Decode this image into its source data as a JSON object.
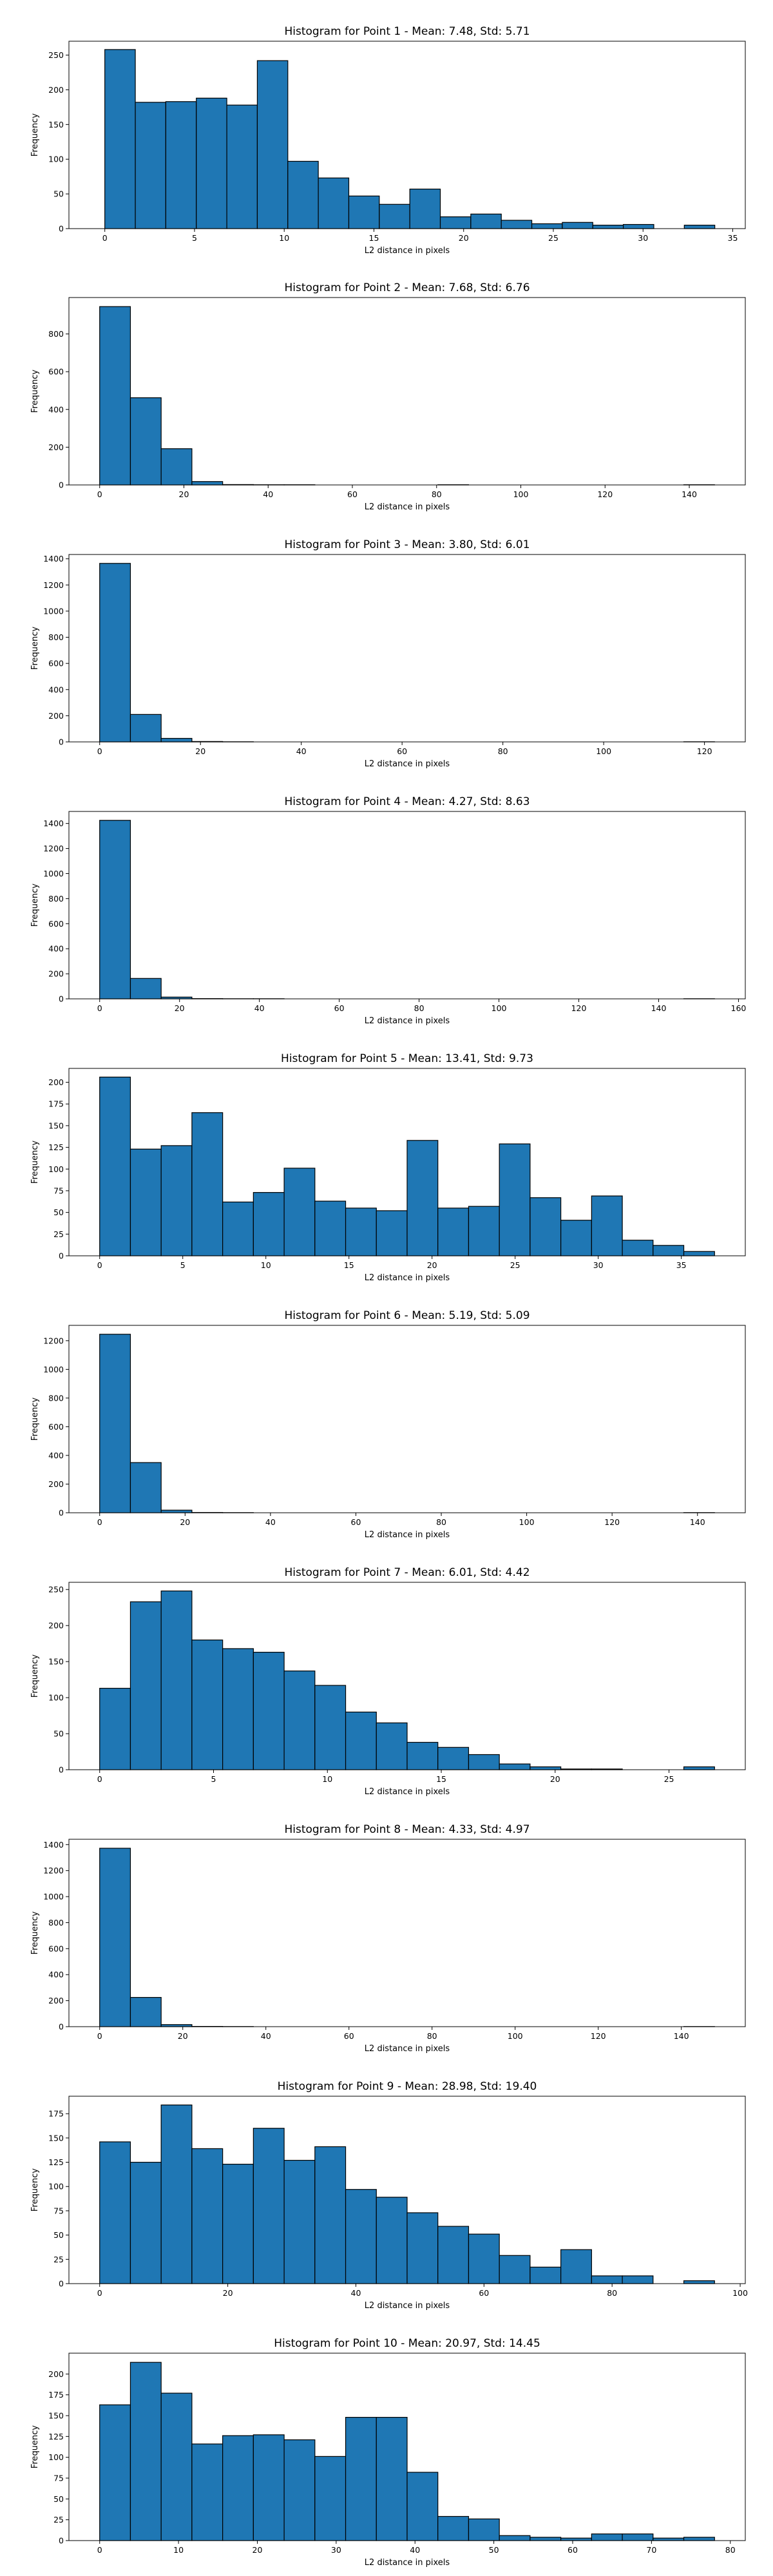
{
  "chart_data": [
    {
      "type": "bar",
      "title": "Histogram for Point 1 - Mean: 7.48, Std: 5.71",
      "xlabel": "L2 distance in pixels",
      "ylabel": "Frequency",
      "bin_edges": [
        0,
        1.7,
        3.4,
        5.1,
        6.8,
        8.5,
        10.2,
        11.9,
        13.6,
        15.3,
        17.0,
        18.7,
        20.4,
        22.1,
        23.8,
        25.5,
        27.2,
        28.9,
        30.6,
        32.3,
        34.0
      ],
      "values": [
        258,
        182,
        183,
        188,
        178,
        242,
        97,
        73,
        47,
        35,
        57,
        17,
        21,
        12,
        7,
        9,
        5,
        6,
        0,
        5
      ],
      "xlim": [
        -2,
        35.7
      ],
      "ylim": [
        0,
        270
      ],
      "xticks": [
        0,
        5,
        10,
        15,
        20,
        25,
        30,
        35
      ],
      "yticks": [
        0,
        50,
        100,
        150,
        200,
        250
      ]
    },
    {
      "type": "bar",
      "title": "Histogram for Point 2 - Mean: 7.68, Std: 6.76",
      "xlabel": "L2 distance in pixels",
      "ylabel": "Frequency",
      "bin_edges": [
        0,
        7.3,
        14.6,
        21.9,
        29.2,
        36.5,
        43.8,
        51.1,
        58.4,
        65.7,
        73.0,
        80.3,
        87.6,
        94.9,
        102.2,
        109.5,
        116.8,
        124.1,
        131.4,
        138.7,
        146.0
      ],
      "values": [
        945,
        462,
        192,
        18,
        2,
        1,
        1,
        0,
        0,
        0,
        0,
        1,
        0,
        0,
        0,
        0,
        0,
        0,
        0,
        1
      ],
      "xlim": [
        -7.3,
        153.3
      ],
      "ylim": [
        0,
        993
      ],
      "xticks": [
        0,
        20,
        40,
        60,
        80,
        100,
        120,
        140
      ],
      "yticks": [
        0,
        200,
        400,
        600,
        800
      ]
    },
    {
      "type": "bar",
      "title": "Histogram for Point 3 - Mean: 3.80, Std: 6.01",
      "xlabel": "L2 distance in pixels",
      "ylabel": "Frequency",
      "bin_edges": [
        0,
        6.1,
        12.2,
        18.3,
        24.4,
        30.5,
        36.6,
        42.7,
        48.8,
        54.9,
        61.0,
        67.1,
        73.2,
        79.3,
        85.4,
        91.5,
        97.6,
        103.7,
        109.8,
        115.9,
        122.0
      ],
      "values": [
        1365,
        210,
        27,
        3,
        1,
        0,
        0,
        0,
        0,
        0,
        0,
        0,
        0,
        0,
        0,
        0,
        0,
        0,
        0,
        1
      ],
      "xlim": [
        -6.1,
        128.1
      ],
      "ylim": [
        0,
        1433
      ],
      "xticks": [
        0,
        20,
        40,
        60,
        80,
        100,
        120
      ],
      "yticks": [
        0,
        200,
        400,
        600,
        800,
        1000,
        1200,
        1400
      ]
    },
    {
      "type": "bar",
      "title": "Histogram for Point 4 - Mean: 4.27, Std: 8.63",
      "xlabel": "L2 distance in pixels",
      "ylabel": "Frequency",
      "bin_edges": [
        0,
        7.7,
        15.4,
        23.1,
        30.8,
        38.5,
        46.2,
        53.9,
        61.6,
        69.3,
        77.0,
        84.7,
        92.4,
        100.1,
        107.8,
        115.5,
        123.2,
        130.9,
        138.6,
        146.3,
        154.0
      ],
      "values": [
        1425,
        163,
        14,
        2,
        1,
        1,
        0,
        0,
        0,
        0,
        0,
        0,
        0,
        0,
        0,
        0,
        0,
        0,
        0,
        1
      ],
      "xlim": [
        -7.7,
        161.7
      ],
      "ylim": [
        0,
        1496
      ],
      "xticks": [
        0,
        20,
        40,
        60,
        80,
        100,
        120,
        140,
        160
      ],
      "yticks": [
        0,
        200,
        400,
        600,
        800,
        1000,
        1200,
        1400
      ]
    },
    {
      "type": "bar",
      "title": "Histogram for Point 5 - Mean: 13.41, Std: 9.73",
      "xlabel": "L2 distance in pixels",
      "ylabel": "Frequency",
      "bin_edges": [
        0,
        1.85,
        3.7,
        5.55,
        7.4,
        9.25,
        11.1,
        12.95,
        14.8,
        16.65,
        18.5,
        20.35,
        22.2,
        24.05,
        25.9,
        27.75,
        29.6,
        31.45,
        33.3,
        35.15,
        37.0
      ],
      "values": [
        206,
        123,
        127,
        165,
        62,
        73,
        101,
        63,
        55,
        52,
        133,
        55,
        57,
        129,
        67,
        41,
        69,
        18,
        12,
        5
      ],
      "xlim": [
        -1.85,
        38.85
      ],
      "ylim": [
        0,
        216
      ],
      "xticks": [
        0,
        5,
        10,
        15,
        20,
        25,
        30,
        35
      ],
      "yticks": [
        0,
        25,
        50,
        75,
        100,
        125,
        150,
        175,
        200
      ]
    },
    {
      "type": "bar",
      "title": "Histogram for Point 6 - Mean: 5.19, Std: 5.09",
      "xlabel": "L2 distance in pixels",
      "ylabel": "Frequency",
      "bin_edges": [
        0,
        7.2,
        14.4,
        21.6,
        28.8,
        36.0,
        43.2,
        50.4,
        57.6,
        64.8,
        72.0,
        79.2,
        86.4,
        93.6,
        100.8,
        108.0,
        115.2,
        122.4,
        129.6,
        136.8,
        144.0
      ],
      "values": [
        1245,
        350,
        18,
        2,
        1,
        0,
        0,
        0,
        0,
        0,
        0,
        0,
        0,
        0,
        0,
        0,
        0,
        0,
        0,
        1
      ],
      "xlim": [
        -7.2,
        151.2
      ],
      "ylim": [
        0,
        1307
      ],
      "xticks": [
        0,
        20,
        40,
        60,
        80,
        100,
        120,
        140
      ],
      "yticks": [
        0,
        200,
        400,
        600,
        800,
        1000,
        1200
      ]
    },
    {
      "type": "bar",
      "title": "Histogram for Point 7 - Mean: 6.01, Std: 4.42",
      "xlabel": "L2 distance in pixels",
      "ylabel": "Frequency",
      "bin_edges": [
        0,
        1.35,
        2.7,
        4.05,
        5.4,
        6.75,
        8.1,
        9.45,
        10.8,
        12.15,
        13.5,
        14.85,
        16.2,
        17.55,
        18.9,
        20.25,
        21.6,
        22.95,
        24.3,
        25.65,
        27.0
      ],
      "values": [
        113,
        233,
        248,
        180,
        168,
        163,
        137,
        117,
        80,
        65,
        38,
        31,
        21,
        8,
        4,
        1,
        1,
        0,
        0,
        4
      ],
      "xlim": [
        -1.35,
        28.35
      ],
      "ylim": [
        0,
        260
      ],
      "xticks": [
        0,
        5,
        10,
        15,
        20,
        25
      ],
      "yticks": [
        0,
        50,
        100,
        150,
        200,
        250
      ]
    },
    {
      "type": "bar",
      "title": "Histogram for Point 8 - Mean: 4.33, Std: 4.97",
      "xlabel": "L2 distance in pixels",
      "ylabel": "Frequency",
      "bin_edges": [
        0,
        7.4,
        14.8,
        22.2,
        29.6,
        37.0,
        44.4,
        51.8,
        59.2,
        66.6,
        74.0,
        81.4,
        88.8,
        96.2,
        103.6,
        111.0,
        118.4,
        125.8,
        133.2,
        140.6,
        148.0
      ],
      "values": [
        1372,
        225,
        16,
        2,
        1,
        0,
        0,
        0,
        0,
        0,
        0,
        0,
        0,
        0,
        0,
        0,
        0,
        0,
        0,
        1
      ],
      "xlim": [
        -7.4,
        155.4
      ],
      "ylim": [
        0,
        1441
      ],
      "xticks": [
        0,
        20,
        40,
        60,
        80,
        100,
        120,
        140
      ],
      "yticks": [
        0,
        200,
        400,
        600,
        800,
        1000,
        1200,
        1400
      ]
    },
    {
      "type": "bar",
      "title": "Histogram for Point 9 - Mean: 28.98, Std: 19.40",
      "xlabel": "L2 distance in pixels",
      "ylabel": "Frequency",
      "bin_edges": [
        0,
        4.8,
        9.6,
        14.4,
        19.2,
        24.0,
        28.8,
        33.6,
        38.4,
        43.2,
        48.0,
        52.8,
        57.6,
        62.4,
        67.2,
        72.0,
        76.8,
        81.6,
        86.4,
        91.2,
        96.0
      ],
      "values": [
        146,
        125,
        184,
        139,
        123,
        160,
        127,
        141,
        97,
        89,
        73,
        59,
        51,
        29,
        17,
        35,
        8,
        8,
        0,
        3
      ],
      "xlim": [
        -4.8,
        100.8
      ],
      "ylim": [
        0,
        193
      ],
      "xticks": [
        0,
        20,
        40,
        60,
        80,
        100
      ],
      "yticks": [
        0,
        25,
        50,
        75,
        100,
        125,
        150,
        175
      ]
    },
    {
      "type": "bar",
      "title": "Histogram for Point 10 - Mean: 20.97, Std: 14.45",
      "xlabel": "L2 distance in pixels",
      "ylabel": "Frequency",
      "bin_edges": [
        0,
        3.9,
        7.8,
        11.7,
        15.6,
        19.5,
        23.4,
        27.3,
        31.2,
        35.1,
        39.0,
        42.9,
        46.8,
        50.7,
        54.6,
        58.5,
        62.4,
        66.3,
        70.2,
        74.1,
        78.0
      ],
      "values": [
        163,
        214,
        177,
        116,
        126,
        127,
        121,
        101,
        148,
        148,
        82,
        29,
        26,
        6,
        4,
        3,
        8,
        8,
        3,
        4
      ],
      "xlim": [
        -3.9,
        81.9
      ],
      "ylim": [
        0,
        225
      ],
      "xticks": [
        0,
        10,
        20,
        30,
        40,
        50,
        60,
        70,
        80
      ],
      "yticks": [
        0,
        25,
        50,
        75,
        100,
        125,
        150,
        175,
        200
      ]
    }
  ]
}
